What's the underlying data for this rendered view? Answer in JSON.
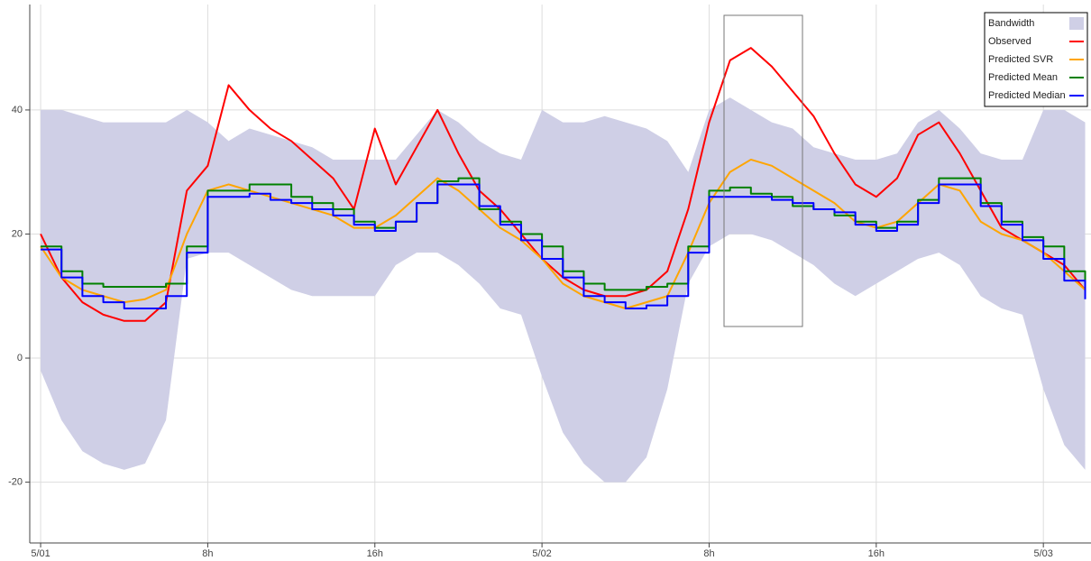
{
  "chart_data": {
    "type": "line",
    "x": [
      0,
      1,
      2,
      3,
      4,
      5,
      6,
      7,
      8,
      9,
      10,
      11,
      12,
      13,
      14,
      15,
      16,
      17,
      18,
      19,
      20,
      21,
      22,
      23,
      24,
      25,
      26,
      27,
      28,
      29,
      30,
      31,
      32,
      33,
      34,
      35,
      36,
      37,
      38,
      39,
      40,
      41,
      42,
      43,
      44,
      45,
      46,
      47,
      48,
      49,
      50
    ],
    "band": {
      "name": "Bandwidth",
      "color": "#cfcfe6",
      "upper": [
        40,
        40,
        39,
        38,
        38,
        38,
        38,
        40,
        38,
        35,
        37,
        36,
        35,
        34,
        32,
        32,
        32,
        32,
        36,
        40,
        38,
        35,
        33,
        32,
        40,
        38,
        38,
        39,
        38,
        37,
        35,
        30,
        40,
        42,
        40,
        38,
        37,
        34,
        33,
        32,
        32,
        33,
        38,
        40,
        37,
        33,
        32,
        32,
        40,
        40,
        38
      ],
      "lower": [
        -2,
        -10,
        -15,
        -17,
        -18,
        -17,
        -10,
        16,
        17,
        17,
        15,
        13,
        11,
        10,
        10,
        10,
        10,
        15,
        17,
        17,
        15,
        12,
        8,
        7,
        -3,
        -12,
        -17,
        -20,
        -20,
        -16,
        -5,
        12,
        18,
        20,
        20,
        19,
        17,
        15,
        12,
        10,
        12,
        14,
        16,
        17,
        15,
        10,
        8,
        7,
        -5,
        -14,
        -18
      ]
    },
    "series": [
      {
        "name": "Observed",
        "color": "#ff0000",
        "step": false,
        "values": [
          20,
          13,
          9,
          7,
          6,
          6,
          9,
          27,
          31,
          44,
          40,
          37,
          35,
          32,
          29,
          24,
          37,
          28,
          34,
          40,
          33,
          27,
          24,
          20,
          16,
          13,
          11,
          10,
          10,
          11,
          14,
          24,
          38,
          48,
          50,
          47,
          43,
          39,
          33,
          28,
          26,
          29,
          36,
          38,
          33,
          27,
          21,
          19,
          17,
          15,
          11
        ]
      },
      {
        "name": "Predicted SVR",
        "color": "#ffa500",
        "step": false,
        "values": [
          18,
          13,
          11,
          10,
          9,
          9.5,
          11,
          20,
          27,
          28,
          27,
          26,
          25,
          24,
          23,
          21,
          21,
          23,
          26,
          29,
          27,
          24,
          21,
          19,
          16,
          12,
          10,
          9,
          8,
          9,
          10,
          17,
          25,
          30,
          32,
          31,
          29,
          27,
          25,
          22,
          21,
          22,
          25,
          28,
          27,
          22,
          20,
          19,
          17,
          14,
          11
        ]
      },
      {
        "name": "Predicted Mean",
        "color": "#008000",
        "step": true,
        "values": [
          18,
          14,
          12,
          11.5,
          11.5,
          11.5,
          12,
          18,
          27,
          27,
          28,
          28,
          26,
          25,
          24,
          22,
          21,
          22,
          25,
          28.5,
          29,
          24,
          22,
          20,
          18,
          14,
          12,
          11,
          11,
          11.5,
          12,
          18,
          27,
          27.5,
          26.5,
          26,
          24.5,
          24,
          23,
          22,
          21,
          22,
          25.5,
          29,
          29,
          25,
          22,
          19.5,
          18,
          14,
          12
        ]
      },
      {
        "name": "Predicted Median",
        "color": "#0000ff",
        "step": true,
        "values": [
          17.5,
          13,
          10,
          9,
          8,
          8,
          10,
          17,
          26,
          26,
          26.5,
          25.5,
          25,
          24,
          23,
          21.5,
          20.5,
          22,
          25,
          28,
          28,
          24.5,
          21.5,
          19,
          16,
          13,
          10,
          9,
          8,
          8.5,
          10,
          17,
          26,
          26,
          26,
          25.5,
          25,
          24,
          23.5,
          21.5,
          20.5,
          21.5,
          25,
          28,
          28,
          24.5,
          21.5,
          19,
          16,
          12.5,
          9.5
        ]
      }
    ],
    "xlim": [
      -0.52,
      50.28
    ],
    "ylim": [
      -29.8,
      57
    ],
    "xticks": [
      {
        "value": 0,
        "label": "5/01"
      },
      {
        "value": 8,
        "label": "8h"
      },
      {
        "value": 16,
        "label": "16h"
      },
      {
        "value": 24,
        "label": "5/02"
      },
      {
        "value": 32,
        "label": "8h"
      },
      {
        "value": 40,
        "label": "16h"
      },
      {
        "value": 48,
        "label": "5/03"
      }
    ],
    "yticks": [
      -20,
      0,
      20,
      40
    ],
    "grid": true,
    "legend": "top-right"
  }
}
